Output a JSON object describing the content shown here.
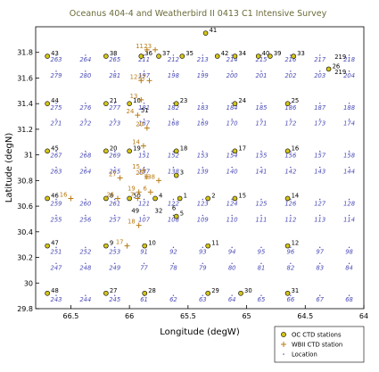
{
  "chart_data": {
    "type": "scatter",
    "title": "Oceanus 404-4 and Weatherbird II 0413 C1 Intensive Survey",
    "xlabel": "Longitude (degW)",
    "ylabel": "Latitude (degN)",
    "xlim": [
      66.8,
      64.0
    ],
    "ylim": [
      29.8,
      32.0
    ],
    "xticks": [
      "66.5",
      "66",
      "65.5",
      "65",
      "64.5",
      "64"
    ],
    "yticks": [
      "29.8",
      "30",
      "30.2",
      "30.4",
      "30.6",
      "30.8",
      "31",
      "31.2",
      "31.4",
      "31.6",
      "31.8"
    ],
    "grid": false,
    "legend_position": "bottom-right",
    "colors": {
      "oc": "#d4c41a",
      "wb": "#b87a14",
      "loc": "#4a4ab8",
      "title": "#6b6b3a"
    },
    "legend": [
      "OC CTD stations",
      "WBII CTD station",
      "Location"
    ],
    "location_grid": {
      "x": [
        66.625,
        66.375,
        66.125,
        65.875,
        65.625,
        65.375,
        65.125,
        64.875,
        64.625,
        64.375,
        64.125
      ],
      "y": [
        31.75,
        31.625,
        31.375,
        31.25,
        31.0,
        30.875,
        30.625,
        30.5,
        30.25,
        30.125,
        29.875
      ],
      "labels": [
        [
          "263",
          "264",
          "265",
          "211",
          "212",
          "213",
          "214",
          "215",
          "216",
          "217",
          "218"
        ],
        [
          "279",
          "280",
          "281",
          "197",
          "198",
          "199",
          "200",
          "201",
          "202",
          "203",
          "204"
        ],
        [
          "275",
          "276",
          "277",
          "181",
          "182",
          "183",
          "184",
          "185",
          "186",
          "187",
          "188"
        ],
        [
          "271",
          "272",
          "273",
          "167",
          "168",
          "169",
          "170",
          "171",
          "172",
          "173",
          "174"
        ],
        [
          "267",
          "268",
          "269",
          "151",
          "152",
          "153",
          "154",
          "155",
          "156",
          "157",
          "158"
        ],
        [
          "263",
          "264",
          "265",
          "137",
          "138",
          "139",
          "140",
          "141",
          "142",
          "143",
          "144"
        ],
        [
          "259",
          "260",
          "261",
          "121",
          "122",
          "123",
          "124",
          "125",
          "126",
          "127",
          "128"
        ],
        [
          "255",
          "256",
          "257",
          "107",
          "108",
          "109",
          "110",
          "111",
          "112",
          "113",
          "114"
        ],
        [
          "251",
          "252",
          "253",
          "91",
          "92",
          "93",
          "94",
          "95",
          "96",
          "97",
          "98"
        ],
        [
          "247",
          "248",
          "249",
          "77",
          "78",
          "79",
          "80",
          "81",
          "82",
          "83",
          "84"
        ],
        [
          "243",
          "244",
          "245",
          "61",
          "62",
          "63",
          "64",
          "65",
          "66",
          "67",
          "68"
        ]
      ]
    },
    "oc_stations": [
      {
        "id": "41",
        "x": 65.35,
        "y": 31.95
      },
      {
        "id": "43",
        "x": 66.7,
        "y": 31.77
      },
      {
        "id": "38",
        "x": 66.2,
        "y": 31.77
      },
      {
        "id": "36",
        "x": 65.9,
        "y": 31.77
      },
      {
        "id": "37",
        "x": 65.75,
        "y": 31.77
      },
      {
        "id": "35",
        "x": 65.55,
        "y": 31.77
      },
      {
        "id": "42",
        "x": 65.25,
        "y": 31.77
      },
      {
        "id": "34",
        "x": 65.1,
        "y": 31.77
      },
      {
        "id": "40",
        "x": 64.9,
        "y": 31.77
      },
      {
        "id": "39",
        "x": 64.8,
        "y": 31.77
      },
      {
        "id": "33",
        "x": 64.6,
        "y": 31.77
      },
      {
        "id": "26",
        "x": 64.3,
        "y": 31.67
      },
      {
        "id": "44",
        "x": 66.7,
        "y": 31.4
      },
      {
        "id": "21",
        "x": 66.2,
        "y": 31.4
      },
      {
        "id": "10",
        "x": 66.0,
        "y": 31.4
      },
      {
        "id": "23",
        "x": 65.6,
        "y": 31.4
      },
      {
        "id": "24",
        "x": 65.1,
        "y": 31.4
      },
      {
        "id": "25",
        "x": 64.65,
        "y": 31.4
      },
      {
        "id": "45",
        "x": 66.7,
        "y": 31.03
      },
      {
        "id": "20",
        "x": 66.2,
        "y": 31.03
      },
      {
        "id": "19",
        "x": 66.0,
        "y": 31.03
      },
      {
        "id": "18",
        "x": 65.6,
        "y": 31.03
      },
      {
        "id": "17",
        "x": 65.1,
        "y": 31.03
      },
      {
        "id": "16",
        "x": 64.65,
        "y": 31.03
      },
      {
        "id": "3",
        "x": 65.6,
        "y": 30.84
      },
      {
        "id": "46",
        "x": 66.7,
        "y": 30.66
      },
      {
        "id": "8",
        "x": 66.2,
        "y": 30.66
      },
      {
        "id": "50",
        "x": 66.0,
        "y": 30.66
      },
      {
        "id": "4",
        "x": 65.78,
        "y": 30.66
      },
      {
        "id": "1",
        "x": 65.57,
        "y": 30.66
      },
      {
        "id": "2",
        "x": 65.33,
        "y": 30.66
      },
      {
        "id": "15",
        "x": 65.1,
        "y": 30.66
      },
      {
        "id": "14",
        "x": 64.65,
        "y": 30.66
      },
      {
        "id": "5",
        "x": 65.6,
        "y": 30.52
      },
      {
        "id": "47",
        "x": 66.7,
        "y": 30.29
      },
      {
        "id": "9",
        "x": 66.2,
        "y": 30.29
      },
      {
        "id": "10",
        "x": 65.87,
        "y": 30.29
      },
      {
        "id": "11",
        "x": 65.33,
        "y": 30.29
      },
      {
        "id": "12",
        "x": 64.65,
        "y": 30.29
      },
      {
        "id": "48",
        "x": 66.7,
        "y": 29.92
      },
      {
        "id": "27",
        "x": 66.2,
        "y": 29.92
      },
      {
        "id": "28",
        "x": 65.87,
        "y": 29.92
      },
      {
        "id": "29",
        "x": 65.33,
        "y": 29.92
      },
      {
        "id": "30",
        "x": 65.05,
        "y": 29.92
      },
      {
        "id": "31",
        "x": 64.65,
        "y": 29.92
      }
    ],
    "wb_stations": [
      {
        "id": "11",
        "x": 65.85,
        "y": 31.82
      },
      {
        "id": "23",
        "x": 65.78,
        "y": 31.82
      },
      {
        "id": "12",
        "x": 65.9,
        "y": 31.58
      },
      {
        "id": "22",
        "x": 65.83,
        "y": 31.58
      },
      {
        "id": "13",
        "x": 65.9,
        "y": 31.43
      },
      {
        "id": "24",
        "x": 65.93,
        "y": 31.31
      },
      {
        "id": "20",
        "x": 65.85,
        "y": 31.21
      },
      {
        "id": "14",
        "x": 65.88,
        "y": 31.07
      },
      {
        "id": "15",
        "x": 65.88,
        "y": 30.88
      },
      {
        "id": "25",
        "x": 65.85,
        "y": 30.83
      },
      {
        "id": "27",
        "x": 66.08,
        "y": 30.82
      },
      {
        "id": "19",
        "x": 65.92,
        "y": 30.71
      },
      {
        "id": "6",
        "x": 65.82,
        "y": 30.71
      },
      {
        "id": "16",
        "x": 66.5,
        "y": 30.66
      },
      {
        "id": "26",
        "x": 66.1,
        "y": 30.66
      },
      {
        "id": "7",
        "x": 65.93,
        "y": 30.66
      },
      {
        "id": "138",
        "x": 65.75,
        "y": 30.8
      },
      {
        "id": "18",
        "x": 65.92,
        "y": 30.45
      },
      {
        "id": "17",
        "x": 66.02,
        "y": 30.29
      }
    ],
    "extra_labels": [
      {
        "text": "49",
        "x": 65.95,
        "y": 30.55
      },
      {
        "text": "32",
        "x": 65.75,
        "y": 30.55
      },
      {
        "text": "51",
        "x": 65.87,
        "y": 31.33
      },
      {
        "text": "6",
        "x": 65.62,
        "y": 30.57
      },
      {
        "text": "219",
        "x": 64.2,
        "y": 31.75
      },
      {
        "text": "219",
        "x": 64.2,
        "y": 31.63
      }
    ]
  }
}
